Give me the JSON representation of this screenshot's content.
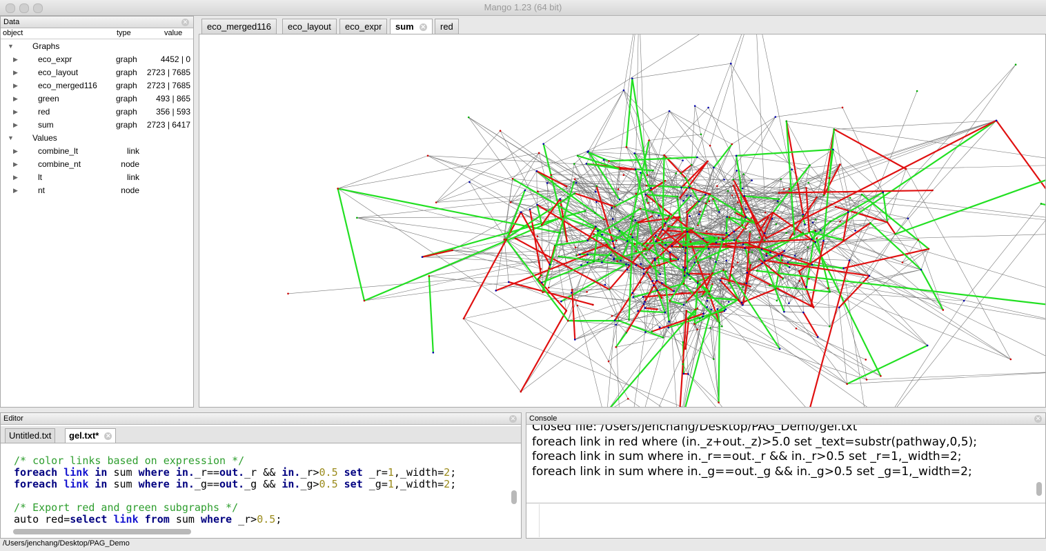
{
  "window": {
    "title": "Mango 1.23 (64 bit)"
  },
  "data_panel": {
    "title": "Data",
    "columns": [
      "object",
      "type",
      "value"
    ],
    "groups": [
      {
        "name": "Graphs",
        "rows": [
          [
            "eco_expr",
            "graph",
            "4452 | 0"
          ],
          [
            "eco_layout",
            "graph",
            "2723 | 7685"
          ],
          [
            "eco_merged116",
            "graph",
            "2723 | 7685"
          ],
          [
            "green",
            "graph",
            "493 | 865"
          ],
          [
            "red",
            "graph",
            "356 | 593"
          ],
          [
            "sum",
            "graph",
            "2723 | 6417"
          ]
        ]
      },
      {
        "name": "Values",
        "rows": [
          [
            "combine_lt",
            "link"
          ],
          [
            "combine_nt",
            "node"
          ],
          [
            "lt",
            "link"
          ],
          [
            "nt",
            "node"
          ]
        ]
      }
    ]
  },
  "graph_tabs": {
    "tabs": [
      "eco_merged116",
      "eco_layout",
      "eco_expr",
      "sum",
      "red"
    ],
    "active": 3
  },
  "editor": {
    "title": "Editor",
    "tabs": [
      "Untitled.txt",
      "gel.txt*"
    ],
    "active": 1,
    "lines": [
      [
        {
          "t": "/* color links based on expression */",
          "c": "#2e9e2e"
        }
      ],
      [
        {
          "t": "foreach ",
          "c": "#000080",
          "b": true
        },
        {
          "t": "link ",
          "c": "#1515d0",
          "b": true
        },
        {
          "t": "in ",
          "c": "#000080",
          "b": true
        },
        {
          "t": "sum ",
          "c": "#000"
        },
        {
          "t": "where ",
          "c": "#000080",
          "b": true
        },
        {
          "t": "in.",
          "c": "#000080",
          "b": true
        },
        {
          "t": "_r==",
          "c": "#000"
        },
        {
          "t": "out.",
          "c": "#000080",
          "b": true
        },
        {
          "t": "_r && ",
          "c": "#000"
        },
        {
          "t": "in.",
          "c": "#000080",
          "b": true
        },
        {
          "t": "_r>",
          "c": "#000"
        },
        {
          "t": "0.5 ",
          "c": "#9a8a1a"
        },
        {
          "t": "set ",
          "c": "#000080",
          "b": true
        },
        {
          "t": "_r=",
          "c": "#000"
        },
        {
          "t": "1",
          "c": "#9a8a1a"
        },
        {
          "t": ",_width=",
          "c": "#000"
        },
        {
          "t": "2",
          "c": "#9a8a1a"
        },
        {
          "t": ";",
          "c": "#000"
        }
      ],
      [
        {
          "t": "foreach ",
          "c": "#000080",
          "b": true
        },
        {
          "t": "link ",
          "c": "#1515d0",
          "b": true
        },
        {
          "t": "in ",
          "c": "#000080",
          "b": true
        },
        {
          "t": "sum ",
          "c": "#000"
        },
        {
          "t": "where ",
          "c": "#000080",
          "b": true
        },
        {
          "t": "in.",
          "c": "#000080",
          "b": true
        },
        {
          "t": "_g==",
          "c": "#000"
        },
        {
          "t": "out.",
          "c": "#000080",
          "b": true
        },
        {
          "t": "_g && ",
          "c": "#000"
        },
        {
          "t": "in.",
          "c": "#000080",
          "b": true
        },
        {
          "t": "_g>",
          "c": "#000"
        },
        {
          "t": "0.5 ",
          "c": "#9a8a1a"
        },
        {
          "t": "set ",
          "c": "#000080",
          "b": true
        },
        {
          "t": "_g=",
          "c": "#000"
        },
        {
          "t": "1",
          "c": "#9a8a1a"
        },
        {
          "t": ",_width=",
          "c": "#000"
        },
        {
          "t": "2",
          "c": "#9a8a1a"
        },
        {
          "t": ";",
          "c": "#000"
        }
      ],
      [],
      [
        {
          "t": "/* Export red and green subgraphs */",
          "c": "#2e9e2e"
        }
      ],
      [
        {
          "t": "auto red=",
          "c": "#000"
        },
        {
          "t": "select ",
          "c": "#000080",
          "b": true
        },
        {
          "t": "link ",
          "c": "#1515d0",
          "b": true
        },
        {
          "t": "from ",
          "c": "#000080",
          "b": true
        },
        {
          "t": "sum ",
          "c": "#000"
        },
        {
          "t": "where ",
          "c": "#000080",
          "b": true
        },
        {
          "t": "_r>",
          "c": "#000"
        },
        {
          "t": "0.5",
          "c": "#9a8a1a"
        },
        {
          "t": ";",
          "c": "#000"
        }
      ]
    ]
  },
  "console": {
    "title": "Console",
    "lines": [
      "Closed file: /Users/jenchang/Desktop/PAG_Demo/gel.txt",
      "foreach link in red where (in._z+out._z)>5.0 set _text=substr(pathway,0,5);",
      "foreach link in sum where in._r==out._r && in._r>0.5 set _r=1,_width=2;",
      "foreach link in sum where in._g==out._g && in._g>0.5 set _g=1,_width=2;"
    ]
  },
  "status": "/Users/jenchang/Desktop/PAG_Demo"
}
